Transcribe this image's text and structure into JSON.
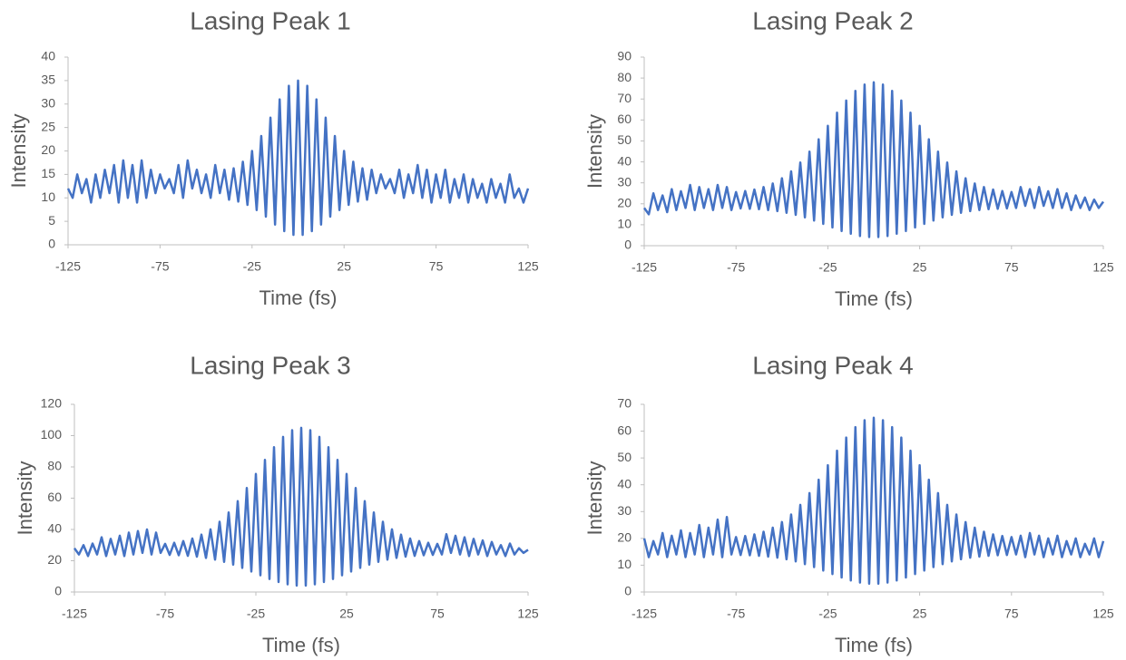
{
  "chart_data": [
    {
      "type": "line",
      "title": "Lasing Peak 1",
      "x_label": "Time (fs)",
      "y_label": "Intensity",
      "xlim": [
        -125,
        125
      ],
      "xticks": [
        -125,
        -75,
        -25,
        25,
        75,
        125
      ],
      "ylim": [
        0,
        40
      ],
      "yticks": [
        0,
        5,
        10,
        15,
        20,
        25,
        30,
        35,
        40
      ],
      "x": [
        -125,
        -122.5,
        -120,
        -117.5,
        -115,
        -112.5,
        -110,
        -107.5,
        -105,
        -102.5,
        -100,
        -97.5,
        -95,
        -92.5,
        -90,
        -87.5,
        -85,
        -82.5,
        -80,
        -77.5,
        -75,
        -72.5,
        -70,
        -67.5,
        -65,
        -62.5,
        -60,
        -57.5,
        -55,
        -52.5,
        -50,
        -47.5,
        -45,
        -42.5,
        -40,
        -37.5,
        -35,
        -32.5,
        -30,
        -27.5,
        -25,
        -22.5,
        -20,
        -17.5,
        -15,
        -12.5,
        -10,
        -7.5,
        -5,
        -2.5,
        0,
        2.5,
        5,
        7.5,
        10,
        12.5,
        15,
        17.5,
        20,
        22.5,
        25,
        27.5,
        30,
        32.5,
        35,
        37.5,
        40,
        42.5,
        45,
        47.5,
        50,
        52.5,
        55,
        57.5,
        60,
        62.5,
        65,
        67.5,
        70,
        72.5,
        75,
        77.5,
        80,
        82.5,
        85,
        87.5,
        90,
        92.5,
        95,
        97.5,
        100,
        102.5,
        105,
        107.5,
        110,
        112.5,
        115,
        117.5,
        120,
        122.5,
        125
      ],
      "series": [
        {
          "color": "#4472c4",
          "values": [
            12,
            10,
            15,
            11,
            14,
            9,
            15,
            10,
            16,
            11,
            17,
            9,
            18,
            10,
            17,
            9,
            18,
            10,
            16,
            11,
            15,
            12,
            14,
            11,
            17,
            10,
            18,
            12,
            16,
            11,
            15,
            10,
            17,
            11,
            16,
            9.6,
            16.3,
            9.2,
            17.7,
            8.5,
            20,
            7.4,
            23.2,
            6,
            27.1,
            4.3,
            31,
            2.9,
            33.9,
            2.1,
            35,
            2.1,
            33.9,
            2.9,
            31,
            4.3,
            27.1,
            6,
            23.2,
            7.4,
            20,
            8.5,
            17.7,
            9.2,
            16.3,
            9.6,
            16,
            11,
            15,
            12,
            14,
            11,
            16,
            10,
            15,
            11,
            17,
            10,
            16,
            9,
            15,
            10,
            16,
            9,
            14,
            10,
            15,
            9,
            14,
            10,
            13,
            9,
            14,
            10,
            13,
            9,
            15,
            10,
            12,
            9,
            12
          ]
        }
      ]
    },
    {
      "type": "line",
      "title": "Lasing Peak 2",
      "x_label": "Time (fs)",
      "y_label": "Intensity",
      "xlim": [
        -125,
        125
      ],
      "xticks": [
        -125,
        -75,
        -25,
        25,
        75,
        125
      ],
      "ylim": [
        0,
        90
      ],
      "yticks": [
        0,
        10,
        20,
        30,
        40,
        50,
        60,
        70,
        80,
        90
      ],
      "x": [
        -125,
        -122.5,
        -120,
        -117.5,
        -115,
        -112.5,
        -110,
        -107.5,
        -105,
        -102.5,
        -100,
        -97.5,
        -95,
        -92.5,
        -90,
        -87.5,
        -85,
        -82.5,
        -80,
        -77.5,
        -75,
        -72.5,
        -70,
        -67.5,
        -65,
        -62.5,
        -60,
        -57.5,
        -55,
        -52.5,
        -50,
        -47.5,
        -45,
        -42.5,
        -40,
        -37.5,
        -35,
        -32.5,
        -30,
        -27.5,
        -25,
        -22.5,
        -20,
        -17.5,
        -15,
        -12.5,
        -10,
        -7.5,
        -5,
        -2.5,
        0,
        2.5,
        5,
        7.5,
        10,
        12.5,
        15,
        17.5,
        20,
        22.5,
        25,
        27.5,
        30,
        32.5,
        35,
        37.5,
        40,
        42.5,
        45,
        47.5,
        50,
        52.5,
        55,
        57.5,
        60,
        62.5,
        65,
        67.5,
        70,
        72.5,
        75,
        77.5,
        80,
        82.5,
        85,
        87.5,
        90,
        92.5,
        95,
        97.5,
        100,
        102.5,
        105,
        107.5,
        110,
        112.5,
        115,
        117.5,
        120,
        122.5,
        125
      ],
      "series": [
        {
          "color": "#4472c4",
          "values": [
            18,
            15,
            25,
            17,
            24,
            16,
            27,
            17,
            26,
            18,
            29,
            17,
            28,
            18,
            27,
            17,
            29,
            18,
            28,
            17,
            25.6,
            17.8,
            26.1,
            17.6,
            26.8,
            17.4,
            28,
            17,
            29.7,
            16.5,
            32.2,
            15.7,
            35.5,
            14.7,
            39.7,
            13.5,
            44.9,
            12,
            50.8,
            10.4,
            57.2,
            8.7,
            63.5,
            7,
            69.3,
            5.7,
            73.9,
            4.6,
            76.9,
            4.1,
            78,
            4.1,
            76.9,
            4.6,
            73.9,
            5.7,
            69.3,
            7,
            63.5,
            8.7,
            57.2,
            10.4,
            50.8,
            12,
            44.9,
            13.5,
            39.7,
            14.7,
            35.5,
            15.7,
            32.2,
            16.5,
            29.7,
            17,
            28,
            17.4,
            26.8,
            17.6,
            26.1,
            17.8,
            25.6,
            18,
            28,
            19,
            27,
            18,
            28,
            19,
            26,
            18,
            27,
            18,
            25,
            17,
            24,
            18,
            23,
            17,
            22,
            18,
            21
          ]
        }
      ]
    },
    {
      "type": "line",
      "title": "Lasing Peak 3",
      "x_label": "Time (fs)",
      "y_label": "Intensity",
      "xlim": [
        -125,
        125
      ],
      "xticks": [
        -125,
        -75,
        -25,
        25,
        75,
        125
      ],
      "ylim": [
        0,
        120
      ],
      "yticks": [
        0,
        20,
        40,
        60,
        80,
        100,
        120
      ],
      "x": [
        -125,
        -122.5,
        -120,
        -117.5,
        -115,
        -112.5,
        -110,
        -107.5,
        -105,
        -102.5,
        -100,
        -97.5,
        -95,
        -92.5,
        -90,
        -87.5,
        -85,
        -82.5,
        -80,
        -77.5,
        -75,
        -72.5,
        -70,
        -67.5,
        -65,
        -62.5,
        -60,
        -57.5,
        -55,
        -52.5,
        -50,
        -47.5,
        -45,
        -42.5,
        -40,
        -37.5,
        -35,
        -32.5,
        -30,
        -27.5,
        -25,
        -22.5,
        -20,
        -17.5,
        -15,
        -12.5,
        -10,
        -7.5,
        -5,
        -2.5,
        0,
        2.5,
        5,
        7.5,
        10,
        12.5,
        15,
        17.5,
        20,
        22.5,
        25,
        27.5,
        30,
        32.5,
        35,
        37.5,
        40,
        42.5,
        45,
        47.5,
        50,
        52.5,
        55,
        57.5,
        60,
        62.5,
        65,
        67.5,
        70,
        72.5,
        75,
        77.5,
        80,
        82.5,
        85,
        87.5,
        90,
        92.5,
        95,
        97.5,
        100,
        102.5,
        105,
        107.5,
        110,
        112.5,
        115,
        117.5,
        120,
        122.5,
        125
      ],
      "series": [
        {
          "color": "#4472c4",
          "values": [
            28,
            24,
            30,
            23,
            31,
            24,
            35,
            23,
            34,
            24,
            36,
            23,
            38,
            24,
            39,
            25,
            40,
            24,
            38,
            25,
            30.8,
            23.7,
            31.5,
            23.5,
            32.6,
            23.1,
            34.2,
            22.6,
            36.7,
            21.8,
            40.1,
            20.7,
            44.9,
            19.3,
            50.9,
            17.5,
            58.1,
            15.4,
            66.5,
            13.1,
            75.5,
            10.7,
            84.5,
            8.3,
            92.6,
            6.4,
            99.2,
            4.9,
            103.5,
            4.1,
            105,
            4.1,
            103.5,
            4.9,
            99.2,
            6.4,
            92.6,
            8.3,
            84.5,
            10.7,
            75.5,
            13.1,
            66.5,
            15.4,
            58.1,
            17.5,
            50.9,
            19.3,
            44.9,
            20.7,
            40.1,
            21.8,
            36.7,
            22.6,
            34.2,
            23.1,
            32.6,
            23.5,
            31.5,
            23.7,
            30.8,
            24,
            37,
            25,
            36,
            24,
            35,
            23,
            34,
            24,
            33,
            23,
            32,
            24,
            30,
            23,
            31,
            24,
            28,
            25,
            27
          ]
        }
      ]
    },
    {
      "type": "line",
      "title": "Lasing Peak 4",
      "x_label": "Time (fs)",
      "y_label": "Intensity",
      "xlim": [
        -125,
        125
      ],
      "xticks": [
        -125,
        -75,
        -25,
        25,
        75,
        125
      ],
      "ylim": [
        0,
        70
      ],
      "yticks": [
        0,
        10,
        20,
        30,
        40,
        50,
        60,
        70
      ],
      "x": [
        -125,
        -122.5,
        -120,
        -117.5,
        -115,
        -112.5,
        -110,
        -107.5,
        -105,
        -102.5,
        -100,
        -97.5,
        -95,
        -92.5,
        -90,
        -87.5,
        -85,
        -82.5,
        -80,
        -77.5,
        -75,
        -72.5,
        -70,
        -67.5,
        -65,
        -62.5,
        -60,
        -57.5,
        -55,
        -52.5,
        -50,
        -47.5,
        -45,
        -42.5,
        -40,
        -37.5,
        -35,
        -32.5,
        -30,
        -27.5,
        -25,
        -22.5,
        -20,
        -17.5,
        -15,
        -12.5,
        -10,
        -7.5,
        -5,
        -2.5,
        0,
        2.5,
        5,
        7.5,
        10,
        12.5,
        15,
        17.5,
        20,
        22.5,
        25,
        27.5,
        30,
        32.5,
        35,
        37.5,
        40,
        42.5,
        45,
        47.5,
        50,
        52.5,
        55,
        57.5,
        60,
        62.5,
        65,
        67.5,
        70,
        72.5,
        75,
        77.5,
        80,
        82.5,
        85,
        87.5,
        90,
        92.5,
        95,
        97.5,
        100,
        102.5,
        105,
        107.5,
        110,
        112.5,
        115,
        117.5,
        120,
        122.5,
        125
      ],
      "series": [
        {
          "color": "#4472c4",
          "values": [
            20,
            13,
            19,
            14,
            22,
            13,
            21,
            14,
            23,
            13,
            22,
            14,
            25,
            13,
            24,
            14,
            27,
            13,
            28,
            14,
            20.5,
            13.8,
            20.9,
            13.7,
            21.5,
            13.5,
            22.5,
            13.2,
            24,
            12.8,
            26.1,
            12.2,
            28.9,
            11.4,
            32.5,
            10.4,
            36.9,
            9.3,
            41.9,
            8,
            47.3,
            6.7,
            52.7,
            5.4,
            57.6,
            4.3,
            61.5,
            3.5,
            64.1,
            3.1,
            65,
            3.1,
            64.1,
            3.5,
            61.5,
            4.3,
            57.6,
            5.4,
            52.7,
            6.7,
            47.3,
            8,
            41.9,
            9.3,
            36.9,
            10.4,
            32.5,
            11.4,
            28.9,
            12.2,
            26.1,
            12.8,
            24,
            13.2,
            22.5,
            13.5,
            21.5,
            13.7,
            20.9,
            13.8,
            20.5,
            14,
            21,
            13,
            22,
            14,
            21,
            13,
            20,
            14,
            21,
            13,
            19,
            14,
            20,
            13,
            18,
            14,
            20,
            13,
            19
          ]
        }
      ]
    }
  ]
}
